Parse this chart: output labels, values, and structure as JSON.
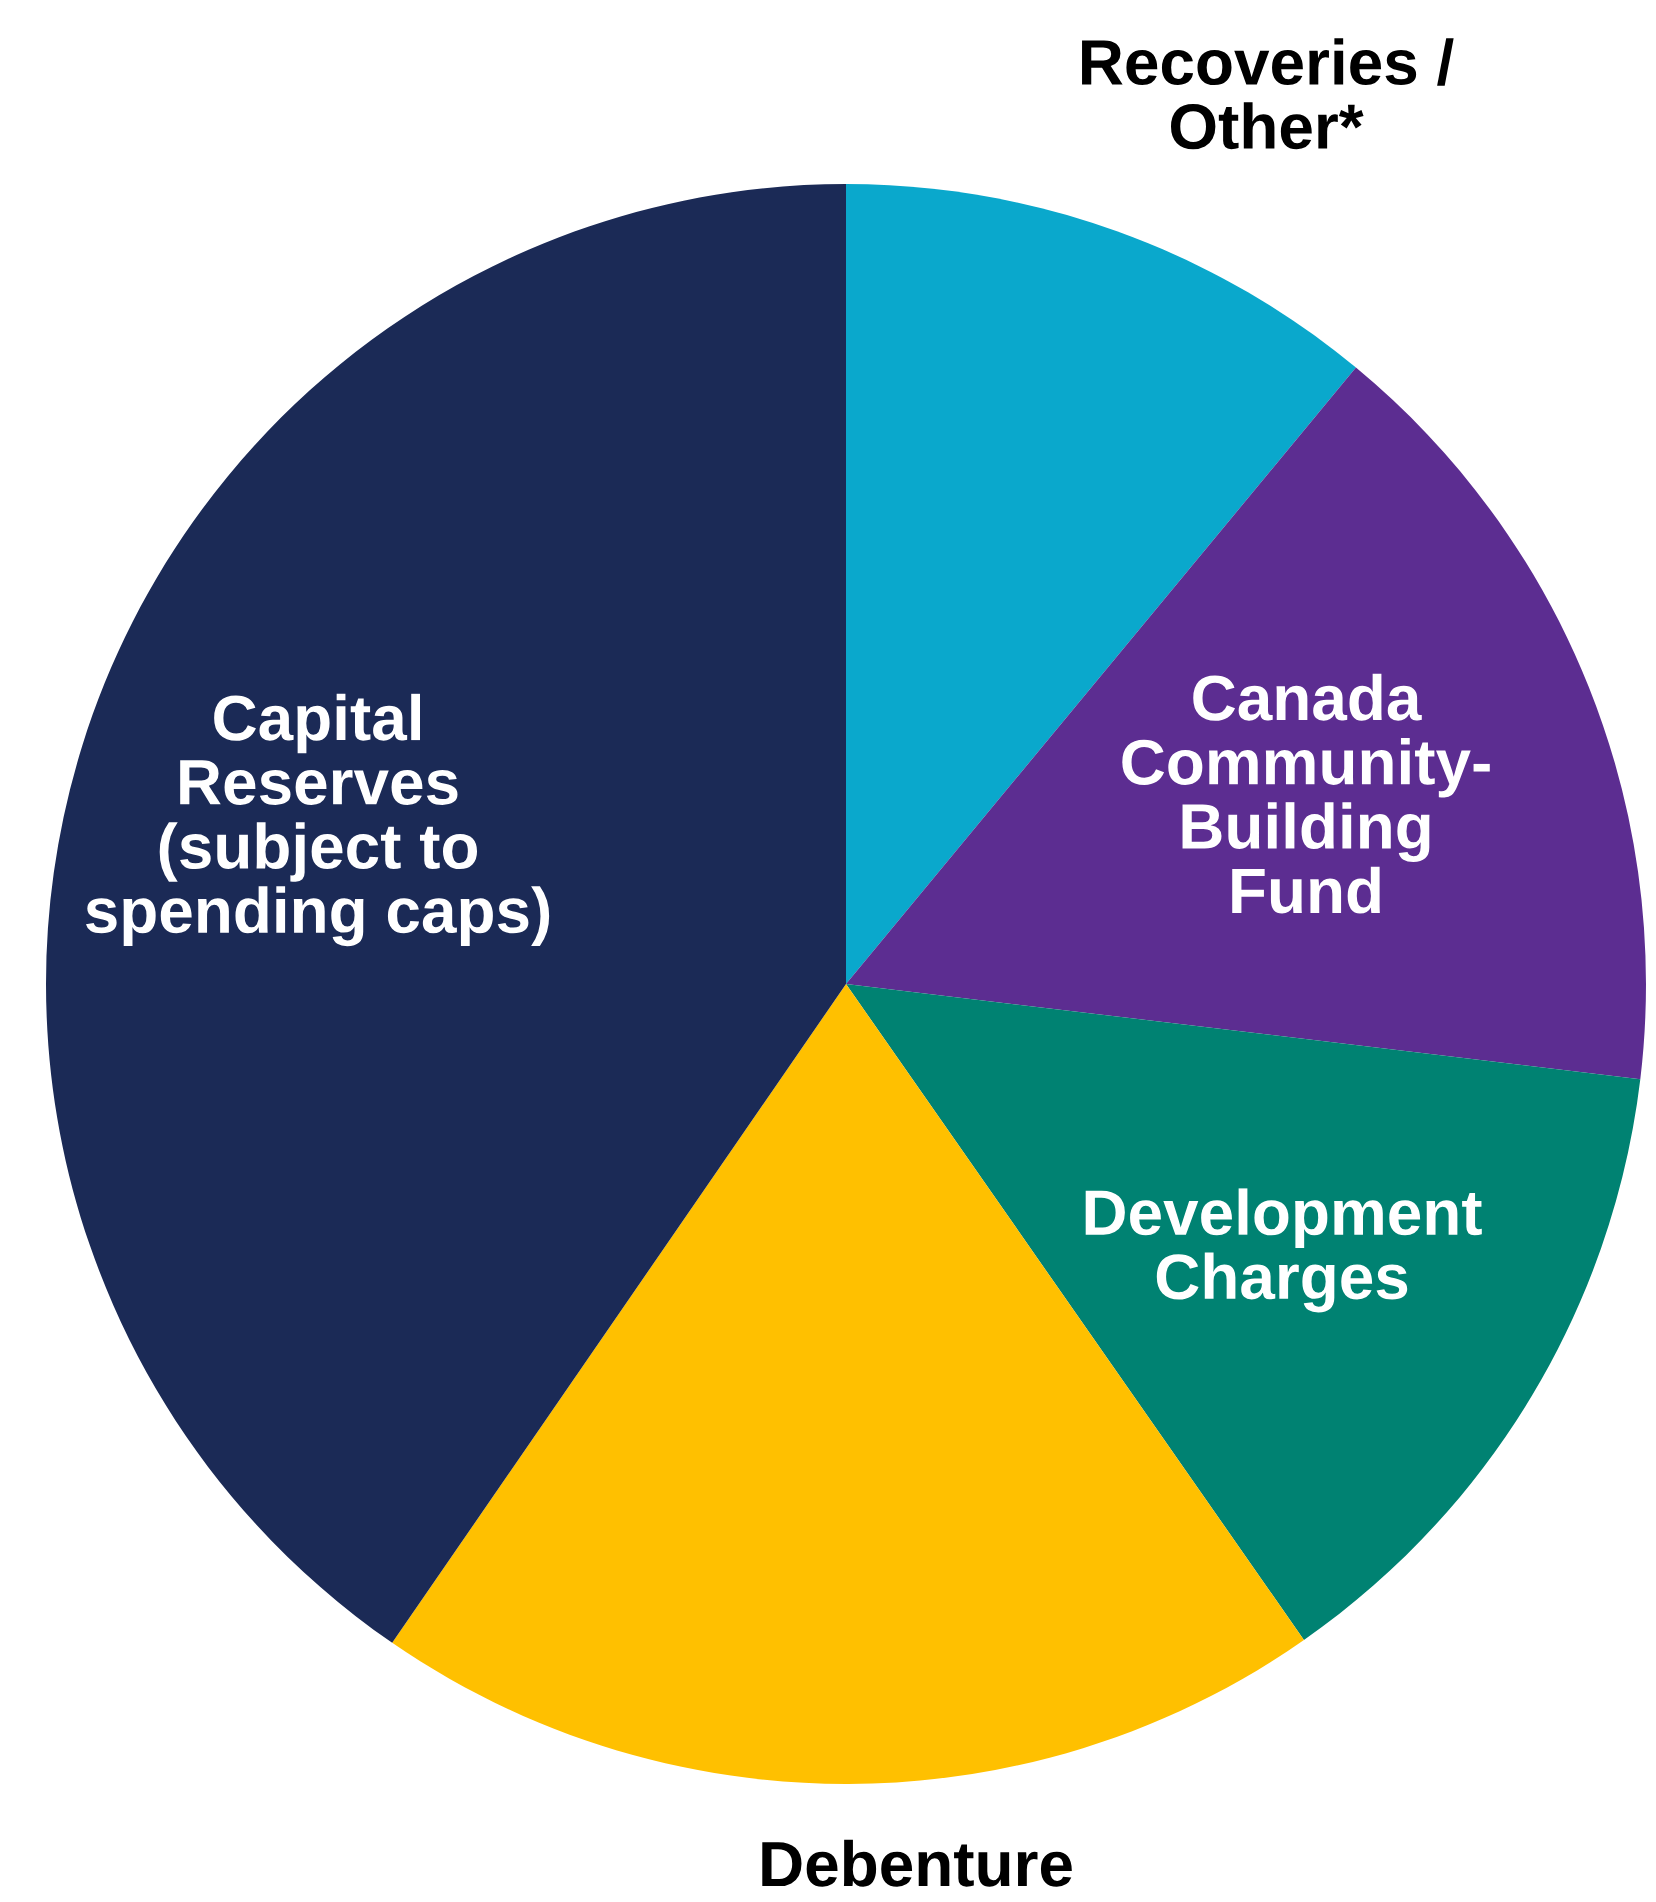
{
  "chart_data": {
    "type": "pie",
    "categories": [
      "Recoveries / Other*",
      "Canada Community-Building Fund",
      "Development Charges",
      "Debenture",
      "Capital Reserves (subject to spending caps)"
    ],
    "values": [
      11.0,
      15.9,
      13.4,
      19.3,
      40.4
    ],
    "colors": [
      "#0aa8cc",
      "#5c2d91",
      "#008272",
      "#ffc000",
      "#1b2a56"
    ]
  }
}
